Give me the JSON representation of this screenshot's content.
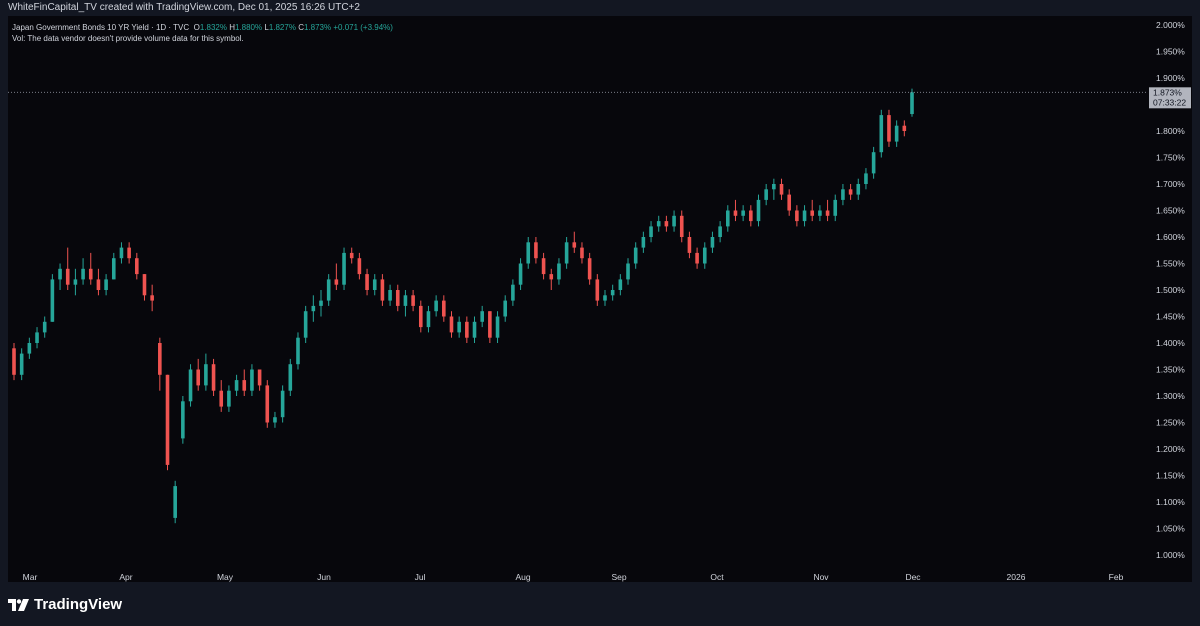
{
  "header": {
    "caption": "WhiteFinCapital_TV created with TradingView.com, Dec 01, 2025 16:26 UTC+2"
  },
  "legend": {
    "symbol": "Japan Government Bonds 10 YR Yield · 1D · TVC",
    "o_label": "O",
    "o_value": "1.832%",
    "h_label": "H",
    "h_value": "1.880%",
    "l_label": "L",
    "l_value": "1.827%",
    "c_label": "C",
    "c_value": "1.873%",
    "change": "+0.071 (+3.94%)",
    "volume_note": "Vol: The data vendor doesn't provide volume data for this symbol."
  },
  "last_price": {
    "price": "1.873%",
    "countdown": "07:33:22"
  },
  "footer": {
    "brand": "TradingView"
  },
  "colors": {
    "up": "#26a69a",
    "down": "#ef5350",
    "background": "#07070c",
    "text": "#d1d4dc"
  },
  "chart_data": {
    "type": "candlestick",
    "symbol": "Japan Government Bonds 10 YR Yield",
    "interval": "1D",
    "y_axis": {
      "unit": "%",
      "range": [
        1.0,
        2.0
      ],
      "ticks": [
        "2.000%",
        "1.950%",
        "1.900%",
        "1.850%",
        "1.800%",
        "1.750%",
        "1.700%",
        "1.650%",
        "1.600%",
        "1.550%",
        "1.500%",
        "1.450%",
        "1.400%",
        "1.350%",
        "1.300%",
        "1.250%",
        "1.200%",
        "1.150%",
        "1.100%",
        "1.050%",
        "1.000%"
      ]
    },
    "x_axis": {
      "ticks": [
        "Mar",
        "Apr",
        "May",
        "Jun",
        "Jul",
        "Aug",
        "Sep",
        "Oct",
        "Nov",
        "Dec",
        "2026",
        "Feb"
      ]
    },
    "last_close": 1.873,
    "candles": [
      [
        1.39,
        1.4,
        1.33,
        1.34
      ],
      [
        1.34,
        1.39,
        1.33,
        1.38
      ],
      [
        1.38,
        1.41,
        1.37,
        1.4
      ],
      [
        1.4,
        1.43,
        1.39,
        1.42
      ],
      [
        1.42,
        1.45,
        1.41,
        1.44
      ],
      [
        1.44,
        1.53,
        1.44,
        1.52
      ],
      [
        1.52,
        1.55,
        1.5,
        1.54
      ],
      [
        1.54,
        1.58,
        1.5,
        1.51
      ],
      [
        1.51,
        1.54,
        1.49,
        1.52
      ],
      [
        1.52,
        1.56,
        1.51,
        1.54
      ],
      [
        1.54,
        1.57,
        1.51,
        1.52
      ],
      [
        1.52,
        1.54,
        1.49,
        1.5
      ],
      [
        1.5,
        1.53,
        1.49,
        1.52
      ],
      [
        1.52,
        1.57,
        1.52,
        1.56
      ],
      [
        1.56,
        1.59,
        1.55,
        1.58
      ],
      [
        1.58,
        1.59,
        1.55,
        1.56
      ],
      [
        1.56,
        1.57,
        1.52,
        1.53
      ],
      [
        1.53,
        1.53,
        1.48,
        1.49
      ],
      [
        1.49,
        1.51,
        1.46,
        1.48
      ],
      [
        1.4,
        1.41,
        1.31,
        1.34
      ],
      [
        1.34,
        1.34,
        1.16,
        1.17
      ],
      [
        1.07,
        1.14,
        1.06,
        1.13
      ],
      [
        1.22,
        1.3,
        1.21,
        1.29
      ],
      [
        1.29,
        1.36,
        1.28,
        1.35
      ],
      [
        1.35,
        1.37,
        1.31,
        1.32
      ],
      [
        1.32,
        1.38,
        1.31,
        1.36
      ],
      [
        1.36,
        1.37,
        1.3,
        1.31
      ],
      [
        1.31,
        1.33,
        1.27,
        1.28
      ],
      [
        1.28,
        1.32,
        1.27,
        1.31
      ],
      [
        1.31,
        1.34,
        1.3,
        1.33
      ],
      [
        1.33,
        1.35,
        1.3,
        1.31
      ],
      [
        1.31,
        1.36,
        1.3,
        1.35
      ],
      [
        1.35,
        1.35,
        1.31,
        1.32
      ],
      [
        1.32,
        1.33,
        1.24,
        1.25
      ],
      [
        1.25,
        1.27,
        1.24,
        1.26
      ],
      [
        1.26,
        1.32,
        1.25,
        1.31
      ],
      [
        1.31,
        1.37,
        1.3,
        1.36
      ],
      [
        1.36,
        1.42,
        1.35,
        1.41
      ],
      [
        1.41,
        1.47,
        1.4,
        1.46
      ],
      [
        1.46,
        1.49,
        1.44,
        1.47
      ],
      [
        1.47,
        1.5,
        1.45,
        1.48
      ],
      [
        1.48,
        1.53,
        1.47,
        1.52
      ],
      [
        1.52,
        1.55,
        1.5,
        1.51
      ],
      [
        1.51,
        1.58,
        1.5,
        1.57
      ],
      [
        1.57,
        1.58,
        1.55,
        1.56
      ],
      [
        1.56,
        1.57,
        1.52,
        1.53
      ],
      [
        1.53,
        1.54,
        1.49,
        1.5
      ],
      [
        1.5,
        1.53,
        1.49,
        1.52
      ],
      [
        1.52,
        1.53,
        1.47,
        1.48
      ],
      [
        1.48,
        1.51,
        1.47,
        1.5
      ],
      [
        1.5,
        1.51,
        1.46,
        1.47
      ],
      [
        1.47,
        1.5,
        1.45,
        1.49
      ],
      [
        1.49,
        1.5,
        1.46,
        1.47
      ],
      [
        1.47,
        1.48,
        1.42,
        1.43
      ],
      [
        1.43,
        1.47,
        1.42,
        1.46
      ],
      [
        1.46,
        1.49,
        1.45,
        1.48
      ],
      [
        1.48,
        1.49,
        1.44,
        1.45
      ],
      [
        1.45,
        1.46,
        1.41,
        1.42
      ],
      [
        1.42,
        1.45,
        1.41,
        1.44
      ],
      [
        1.44,
        1.45,
        1.4,
        1.41
      ],
      [
        1.41,
        1.45,
        1.4,
        1.44
      ],
      [
        1.44,
        1.47,
        1.43,
        1.46
      ],
      [
        1.46,
        1.46,
        1.4,
        1.41
      ],
      [
        1.41,
        1.46,
        1.4,
        1.45
      ],
      [
        1.45,
        1.49,
        1.44,
        1.48
      ],
      [
        1.48,
        1.52,
        1.47,
        1.51
      ],
      [
        1.51,
        1.56,
        1.5,
        1.55
      ],
      [
        1.55,
        1.6,
        1.54,
        1.59
      ],
      [
        1.59,
        1.6,
        1.55,
        1.56
      ],
      [
        1.56,
        1.57,
        1.52,
        1.53
      ],
      [
        1.53,
        1.54,
        1.5,
        1.52
      ],
      [
        1.52,
        1.56,
        1.51,
        1.55
      ],
      [
        1.55,
        1.6,
        1.54,
        1.59
      ],
      [
        1.59,
        1.61,
        1.57,
        1.58
      ],
      [
        1.58,
        1.59,
        1.55,
        1.56
      ],
      [
        1.56,
        1.57,
        1.51,
        1.52
      ],
      [
        1.52,
        1.53,
        1.47,
        1.48
      ],
      [
        1.48,
        1.5,
        1.47,
        1.49
      ],
      [
        1.49,
        1.51,
        1.48,
        1.5
      ],
      [
        1.5,
        1.53,
        1.49,
        1.52
      ],
      [
        1.52,
        1.56,
        1.51,
        1.55
      ],
      [
        1.55,
        1.59,
        1.54,
        1.58
      ],
      [
        1.58,
        1.61,
        1.57,
        1.6
      ],
      [
        1.6,
        1.63,
        1.59,
        1.62
      ],
      [
        1.62,
        1.64,
        1.61,
        1.63
      ],
      [
        1.63,
        1.64,
        1.61,
        1.62
      ],
      [
        1.62,
        1.65,
        1.61,
        1.64
      ],
      [
        1.64,
        1.65,
        1.59,
        1.6
      ],
      [
        1.6,
        1.61,
        1.56,
        1.57
      ],
      [
        1.57,
        1.58,
        1.54,
        1.55
      ],
      [
        1.55,
        1.59,
        1.54,
        1.58
      ],
      [
        1.58,
        1.61,
        1.57,
        1.6
      ],
      [
        1.6,
        1.63,
        1.59,
        1.62
      ],
      [
        1.62,
        1.66,
        1.61,
        1.65
      ],
      [
        1.65,
        1.67,
        1.63,
        1.64
      ],
      [
        1.64,
        1.66,
        1.63,
        1.65
      ],
      [
        1.65,
        1.66,
        1.62,
        1.63
      ],
      [
        1.63,
        1.68,
        1.62,
        1.67
      ],
      [
        1.67,
        1.7,
        1.66,
        1.69
      ],
      [
        1.69,
        1.71,
        1.67,
        1.7
      ],
      [
        1.7,
        1.71,
        1.67,
        1.68
      ],
      [
        1.68,
        1.69,
        1.64,
        1.65
      ],
      [
        1.65,
        1.66,
        1.62,
        1.63
      ],
      [
        1.63,
        1.66,
        1.62,
        1.65
      ],
      [
        1.65,
        1.67,
        1.63,
        1.64
      ],
      [
        1.64,
        1.66,
        1.63,
        1.65
      ],
      [
        1.65,
        1.67,
        1.63,
        1.64
      ],
      [
        1.64,
        1.68,
        1.63,
        1.67
      ],
      [
        1.67,
        1.7,
        1.66,
        1.69
      ],
      [
        1.69,
        1.7,
        1.67,
        1.68
      ],
      [
        1.68,
        1.71,
        1.67,
        1.7
      ],
      [
        1.7,
        1.73,
        1.69,
        1.72
      ],
      [
        1.72,
        1.77,
        1.71,
        1.76
      ],
      [
        1.76,
        1.84,
        1.75,
        1.83
      ],
      [
        1.83,
        1.84,
        1.77,
        1.78
      ],
      [
        1.78,
        1.82,
        1.77,
        1.81
      ],
      [
        1.81,
        1.82,
        1.79,
        1.8
      ],
      [
        1.832,
        1.88,
        1.827,
        1.873
      ]
    ]
  }
}
